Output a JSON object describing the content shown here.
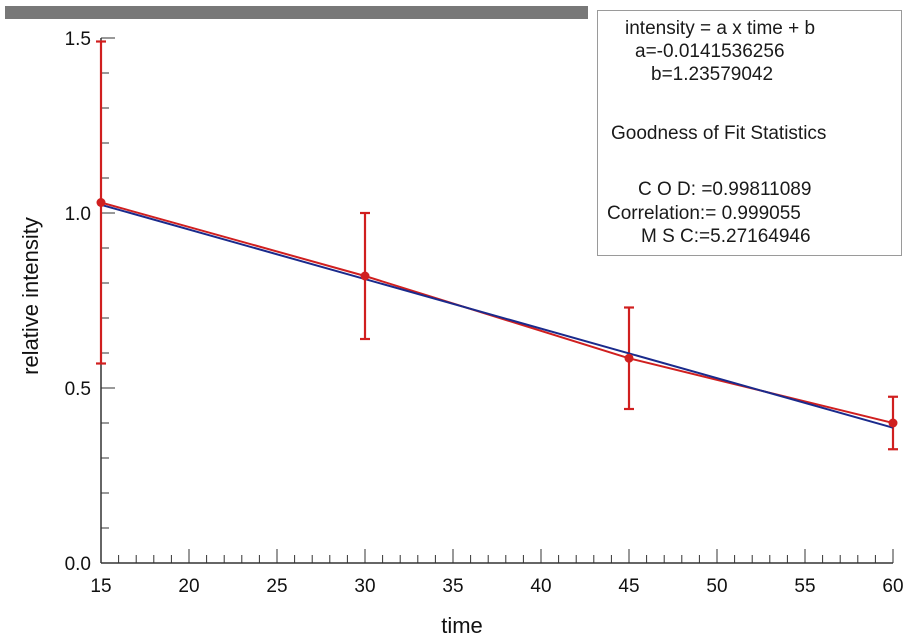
{
  "chart_data": {
    "type": "scatter",
    "xlabel": "time",
    "ylabel": "relative intensity",
    "xlim": [
      15,
      60
    ],
    "ylim": [
      0.0,
      1.5
    ],
    "x_ticks": [
      "15",
      "20",
      "25",
      "30",
      "35",
      "40",
      "45",
      "50",
      "55",
      "60"
    ],
    "y_ticks": [
      "0.0",
      "0.5",
      "1.0",
      "1.5"
    ],
    "grid": false,
    "points": [
      {
        "x": 15,
        "y": 1.03,
        "err_low": 0.57,
        "err_high": 1.49
      },
      {
        "x": 30,
        "y": 0.82,
        "err_low": 0.64,
        "err_high": 1.0
      },
      {
        "x": 45,
        "y": 0.585,
        "err_low": 0.44,
        "err_high": 0.73
      },
      {
        "x": 60,
        "y": 0.4,
        "err_low": 0.325,
        "err_high": 0.475
      }
    ],
    "fit": {
      "slope": -0.0141536256,
      "intercept": 1.23579042
    },
    "colors": {
      "data": "#d01f1f",
      "fit": "#1a2a8c",
      "axis": "#333333"
    },
    "annotation": {
      "equation": "intensity = a x time + b",
      "a": "a=-0.0141536256",
      "b": "b=1.23579042",
      "heading": "Goodness of Fit Statistics",
      "cod": "C O D: =0.99811089",
      "correlation": "Correlation:= 0.999055",
      "msc": "M S C:=5.27164946"
    }
  }
}
